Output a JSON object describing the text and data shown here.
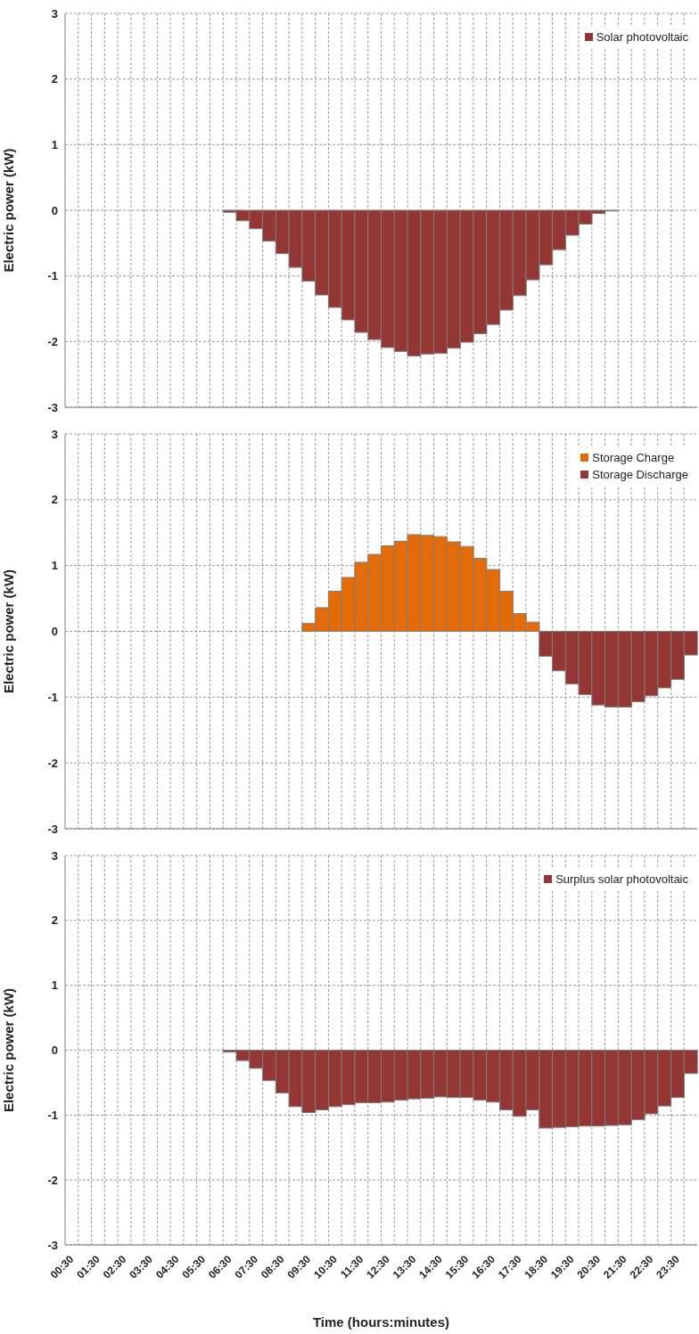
{
  "chart_data": [
    {
      "type": "bar",
      "ylabel": "Electric power (kW)",
      "categories": [
        null,
        null,
        null,
        null,
        null,
        null,
        null,
        null,
        null,
        null,
        null,
        null,
        null,
        null,
        null,
        null,
        null,
        null,
        null,
        null,
        null,
        null,
        null,
        null,
        null,
        null,
        null,
        null,
        null,
        null,
        null,
        null,
        null,
        null,
        null,
        null,
        null,
        null,
        null,
        null,
        null,
        null,
        null,
        null,
        null,
        null,
        null,
        null
      ],
      "series": [
        {
          "name": "Solar photovoltaic",
          "color": "#943634",
          "values": [
            null,
            null,
            null,
            null,
            null,
            null,
            null,
            null,
            null,
            null,
            null,
            null,
            -0.03,
            -0.16,
            -0.28,
            -0.47,
            -0.66,
            -0.87,
            -1.08,
            -1.29,
            -1.48,
            -1.67,
            -1.86,
            -1.97,
            -2.09,
            -2.15,
            -2.22,
            -2.19,
            -2.18,
            -2.1,
            -2.01,
            -1.88,
            -1.74,
            -1.52,
            -1.3,
            -1.06,
            -0.83,
            -0.6,
            -0.38,
            -0.21,
            -0.05,
            -0.01,
            null,
            null,
            null,
            null,
            null,
            null
          ]
        }
      ],
      "ylim": [
        -3,
        3
      ],
      "yticks": [
        -3,
        -2,
        -1,
        0,
        1,
        2,
        3
      ],
      "grid": true,
      "legend": "top right",
      "tick_labels": "y"
    },
    {
      "type": "bar",
      "ylabel": "Electric power (kW)",
      "categories": [
        null,
        null,
        null,
        null,
        null,
        null,
        null,
        null,
        null,
        null,
        null,
        null,
        null,
        null,
        null,
        null,
        null,
        null,
        null,
        null,
        null,
        null,
        null,
        null,
        null,
        null,
        null,
        null,
        null,
        null,
        null,
        null,
        null,
        null,
        null,
        null,
        null,
        null,
        null,
        null,
        null,
        null,
        null,
        null,
        null,
        null,
        null,
        null
      ],
      "series": [
        {
          "name": "Storage Charge",
          "color": "#e36c09",
          "values": [
            null,
            null,
            null,
            null,
            null,
            null,
            null,
            null,
            null,
            null,
            null,
            null,
            null,
            null,
            null,
            null,
            null,
            null,
            0.12,
            0.36,
            0.61,
            0.82,
            1.05,
            1.17,
            1.3,
            1.37,
            1.47,
            1.46,
            1.44,
            1.36,
            1.29,
            1.11,
            0.94,
            0.61,
            0.27,
            0.14,
            null,
            null,
            null,
            null,
            null,
            null,
            null,
            null,
            null,
            null,
            null,
            null
          ]
        },
        {
          "name": "Storage Discharge",
          "color": "#943634",
          "values": [
            null,
            null,
            null,
            null,
            null,
            null,
            null,
            null,
            null,
            null,
            null,
            null,
            null,
            null,
            null,
            null,
            null,
            null,
            null,
            null,
            null,
            null,
            null,
            null,
            null,
            null,
            null,
            null,
            null,
            null,
            null,
            null,
            null,
            null,
            null,
            null,
            -0.38,
            -0.6,
            -0.8,
            -0.96,
            -1.12,
            -1.15,
            -1.15,
            -1.07,
            -0.98,
            -0.86,
            -0.73,
            -0.36
          ]
        }
      ],
      "stacked": true,
      "ylim": [
        -3,
        3
      ],
      "yticks": [
        -3,
        -2,
        -1,
        0,
        1,
        2,
        3
      ],
      "grid": true,
      "legend": "top right",
      "tick_labels": "y"
    },
    {
      "type": "bar",
      "xlabel": "Time (hours:minutes)",
      "ylabel": "Electric power (kW)",
      "categories": [
        "00:30",
        null,
        "01:30",
        null,
        "02:30",
        null,
        "03:30",
        null,
        "04:30",
        null,
        "05:30",
        null,
        "06:30",
        null,
        "07:30",
        null,
        "08:30",
        null,
        "09:30",
        null,
        "10:30",
        null,
        "11:30",
        null,
        "12:30",
        null,
        "13:30",
        null,
        "14:30",
        null,
        "15:30",
        null,
        "16:30",
        null,
        "17:30",
        null,
        "18:30",
        null,
        "19:30",
        null,
        "20:30",
        null,
        "21:30",
        null,
        "22:30",
        null,
        "23:30",
        null
      ],
      "series": [
        {
          "name": "Surplus solar photovoltaic",
          "color": "#943634",
          "values": [
            null,
            null,
            null,
            null,
            null,
            null,
            null,
            null,
            null,
            null,
            null,
            null,
            -0.03,
            -0.16,
            -0.28,
            -0.47,
            -0.66,
            -0.87,
            -0.96,
            -0.92,
            -0.87,
            -0.84,
            -0.81,
            -0.81,
            -0.8,
            -0.77,
            -0.75,
            -0.74,
            -0.72,
            -0.73,
            -0.73,
            -0.77,
            -0.8,
            -0.92,
            -1.02,
            -0.92,
            -1.2,
            -1.19,
            -1.18,
            -1.17,
            -1.17,
            -1.16,
            -1.15,
            -1.07,
            -0.98,
            -0.86,
            -0.73,
            -0.36
          ]
        }
      ],
      "ylim": [
        -3,
        3
      ],
      "yticks": [
        -3,
        -2,
        -1,
        0,
        1,
        2,
        3
      ],
      "grid": true,
      "legend": "top right"
    }
  ]
}
